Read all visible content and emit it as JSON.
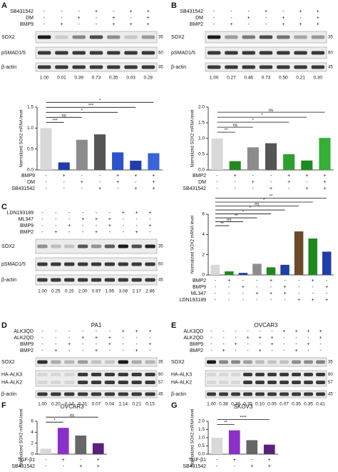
{
  "blots": [
    {
      "label": "A",
      "treatments": [
        {
          "name": "SB431542",
          "signs": [
            "-",
            "-",
            "-",
            "+",
            "-",
            "+",
            "+"
          ]
        },
        {
          "name": "DM",
          "signs": [
            "-",
            "-",
            "+",
            "-",
            "+",
            "-",
            "+"
          ]
        },
        {
          "name": "BMP9",
          "signs": [
            "-",
            "+",
            "-",
            "-",
            "+",
            "+",
            "+"
          ]
        }
      ],
      "rows": [
        {
          "name": [
            "SOX2"
          ],
          "mw": [
            "35"
          ]
        },
        {
          "name": [
            "pSMAD1/5"
          ],
          "mw": [
            "60"
          ]
        },
        {
          "name": [
            "β-actin"
          ],
          "mw": [
            "45"
          ]
        }
      ],
      "quant": [
        "1.00",
        "0.01",
        "0.39",
        "0.73",
        "0.35",
        "0.03",
        "0.28"
      ]
    },
    {
      "label": "B",
      "treatments": [
        {
          "name": "SB431542",
          "signs": [
            "-",
            "-",
            "-",
            "+",
            "-",
            "+",
            "+"
          ]
        },
        {
          "name": "DM",
          "signs": [
            "-",
            "-",
            "+",
            "-",
            "+",
            "-",
            "+"
          ]
        },
        {
          "name": "BMP2",
          "signs": [
            "-",
            "+",
            "-",
            "-",
            "+",
            "+",
            "+"
          ]
        }
      ],
      "rows": [
        {
          "name": [
            "SOX2"
          ],
          "mw": [
            "35"
          ]
        },
        {
          "name": [
            "pSMAD1/5"
          ],
          "mw": [
            "60"
          ]
        },
        {
          "name": [
            "β-actin"
          ],
          "mw": [
            "45"
          ]
        }
      ],
      "quant": [
        "1.00",
        "0.27",
        "0.46",
        "0.73",
        "0.50",
        "0.21",
        "0.30"
      ]
    },
    {
      "label": "C",
      "treatments": [
        {
          "name": "LDN193189",
          "signs": [
            "-",
            "-",
            "-",
            "-",
            "-",
            "-",
            "+",
            "+",
            "+"
          ]
        },
        {
          "name": "ML347",
          "signs": [
            "-",
            "-",
            "-",
            "+",
            "+",
            "+",
            "-",
            "-",
            "-"
          ]
        },
        {
          "name": "BMP9",
          "signs": [
            "-",
            "-",
            "+",
            "-",
            "-",
            "+",
            "-",
            "-",
            "+"
          ]
        },
        {
          "name": "BMP2",
          "signs": [
            "-",
            "+",
            "-",
            "-",
            "+",
            "-",
            "-",
            "+",
            "-"
          ]
        }
      ],
      "rows": [
        {
          "name": [
            "SOX2"
          ],
          "mw": [
            "35"
          ]
        },
        {
          "name": [
            "pSMAD1/5"
          ],
          "mw": [
            "60"
          ]
        },
        {
          "name": [
            "β-actin"
          ],
          "mw": [
            "45"
          ]
        }
      ],
      "quant": [
        "1.00",
        "0.25",
        "0.15",
        "2.00",
        "0.97",
        "1.95",
        "3.08",
        "2.17",
        "2.86"
      ]
    },
    {
      "label": "D",
      "title": "PA1",
      "treatments": [
        {
          "name": "ALK3QD",
          "signs": [
            "-",
            "-",
            "-",
            "-",
            "-",
            "-",
            "+",
            "+",
            "+"
          ]
        },
        {
          "name": "ALK2QD",
          "signs": [
            "-",
            "-",
            "-",
            "+",
            "+",
            "+",
            "-",
            "-",
            "-"
          ]
        },
        {
          "name": "BMP9",
          "signs": [
            "-",
            "-",
            "+",
            "-",
            "-",
            "+",
            "-",
            "-",
            "+"
          ]
        },
        {
          "name": "BMP2",
          "signs": [
            "-",
            "+",
            "-",
            "-",
            "+",
            "-",
            "-",
            "+",
            "-"
          ]
        }
      ],
      "rows": [
        {
          "name": [
            "SOX2"
          ],
          "mw": [
            "35"
          ]
        },
        {
          "name": [
            "HA-ALK3",
            "HA-ALK2"
          ],
          "mw": [
            "60",
            "57"
          ]
        },
        {
          "name": [
            "β-actin"
          ],
          "mw": [
            "45"
          ]
        }
      ],
      "quant": [
        "1.00",
        "0.20",
        "0.14",
        "0.31",
        "0.07",
        "0.04",
        "1.14",
        "0.21",
        "0.15"
      ]
    },
    {
      "label": "E",
      "title": "OVCAR3",
      "treatments": [
        {
          "name": "ALK3QD",
          "signs": [
            "-",
            "-",
            "-",
            "-",
            "-",
            "-",
            "+",
            "+",
            "+",
            "+"
          ]
        },
        {
          "name": "ALK2QD",
          "signs": [
            "-",
            "-",
            "-",
            "+",
            "+",
            "+",
            "-",
            "-",
            "-",
            "+"
          ]
        },
        {
          "name": "BMP9",
          "signs": [
            "-",
            "-",
            "+",
            "-",
            "-",
            "+",
            "-",
            "-",
            "+",
            "-"
          ]
        },
        {
          "name": "BMP2",
          "signs": [
            "-",
            "+",
            "-",
            "-",
            "+",
            "-",
            "-",
            "+",
            "-",
            "-"
          ]
        }
      ],
      "rows": [
        {
          "name": [
            "SOX2"
          ],
          "mw": [
            "35"
          ]
        },
        {
          "name": [
            "HA-ALK3",
            "HA-ALK2"
          ],
          "mw": [
            "60",
            "57"
          ]
        },
        {
          "name": [
            "β-actin"
          ],
          "mw": [
            "45"
          ]
        }
      ],
      "quant": [
        "1.00",
        "0.38",
        "0.39",
        "0.25",
        "0.10",
        "0.05",
        "0.07",
        "0.35",
        "0.35",
        "0.41"
      ]
    }
  ],
  "chart_data": [
    {
      "type": "bar",
      "ylabel": "Normalized SOX2 mRNA level",
      "values": [
        1.0,
        0.18,
        0.72,
        0.85,
        0.42,
        0.22,
        0.4
      ],
      "colors": [
        "#d9d9d9",
        "#1f3ea8",
        "#8c8c8c",
        "#555555",
        "#2c54c8",
        "#1f3ea8",
        "#3a63d8"
      ],
      "ylim": [
        0,
        1.5
      ],
      "yticks": [
        {
          "value": 0,
          "label": "0.0"
        },
        0.5,
        {
          "value": 1,
          "label": "1.0"
        },
        1.5
      ],
      "treatments": [
        {
          "name": "BMP9",
          "signs": [
            "-",
            "+",
            "-",
            "-",
            "+",
            "+",
            "+"
          ]
        },
        {
          "name": "DM",
          "signs": [
            "-",
            "-",
            "+",
            "-",
            "+",
            "-",
            "+"
          ]
        },
        {
          "name": "SB431542",
          "signs": [
            "-",
            "-",
            "-",
            "+",
            "-",
            "+",
            "+"
          ]
        }
      ],
      "annotations": [
        "***",
        "ns",
        "*",
        "***",
        "*"
      ]
    },
    {
      "type": "bar",
      "ylabel": "Normalized SOX2 mRNA level",
      "values": [
        1.0,
        0.28,
        0.72,
        0.85,
        0.5,
        0.3,
        1.02
      ],
      "colors": [
        "#d9d9d9",
        "#1e8a1e",
        "#8c8c8c",
        "#555555",
        "#2ea02e",
        "#1e8a1e",
        "#35b035"
      ],
      "ylim": [
        0,
        2
      ],
      "yticks": [
        {
          "value": 0,
          "label": "0.0"
        },
        0.5,
        {
          "value": 1,
          "label": "1.0"
        },
        1.5,
        {
          "value": 2,
          "label": "2.0"
        }
      ],
      "treatments": [
        {
          "name": "BMP2",
          "signs": [
            "-",
            "+",
            "-",
            "-",
            "+",
            "+",
            "+"
          ]
        },
        {
          "name": "DM",
          "signs": [
            "-",
            "-",
            "+",
            "-",
            "+",
            "-",
            "+"
          ]
        },
        {
          "name": "SB431542",
          "signs": [
            "-",
            "-",
            "-",
            "+",
            "-",
            "+",
            "+"
          ]
        }
      ],
      "annotations": [
        "**",
        "ns",
        "*",
        "*",
        "ns"
      ]
    },
    {
      "type": "bar",
      "ylabel": "Normalized SOX2 mRNA level",
      "values": [
        1.0,
        0.35,
        0.2,
        1.1,
        0.75,
        1.0,
        4.3,
        3.6,
        2.3
      ],
      "colors": [
        "#d9d9d9",
        "#1e8a1e",
        "#1f3ea8",
        "#8c8c8c",
        "#1e8a1e",
        "#1f3ea8",
        "#6b4a2a",
        "#1e8a1e",
        "#1f3ea8"
      ],
      "ylim": [
        0,
        6
      ],
      "yticks": [
        0,
        2,
        4,
        6
      ],
      "treatments": [
        {
          "name": "BMP2",
          "signs": [
            "-",
            "+",
            "-",
            "-",
            "+",
            "-",
            "-",
            "+",
            "-"
          ]
        },
        {
          "name": "BMP9",
          "signs": [
            "-",
            "-",
            "+",
            "-",
            "-",
            "+",
            "-",
            "-",
            "+"
          ]
        },
        {
          "name": "ML347",
          "signs": [
            "-",
            "-",
            "-",
            "+",
            "+",
            "+",
            "-",
            "-",
            "-"
          ]
        },
        {
          "name": "LDN193189",
          "signs": [
            "-",
            "-",
            "-",
            "-",
            "-",
            "-",
            "+",
            "+",
            "+"
          ]
        }
      ],
      "annotations": [
        "**",
        "ns",
        "**",
        "*",
        "*",
        "ns",
        "*",
        "**"
      ]
    },
    {
      "type": "bar",
      "label": "F",
      "title": "OVCAR3",
      "ylabel": "Normalized SOX2 mRNA level",
      "values": [
        1.0,
        4.8,
        3.4,
        2.0
      ],
      "colors": [
        "#d9d9d9",
        "#8b2fc9",
        "#666666",
        "#5a2080"
      ],
      "ylim": [
        0,
        6
      ],
      "yticks": [
        0,
        2,
        4,
        6
      ],
      "treatments": [
        {
          "name": "TGF-β1",
          "signs": [
            "-",
            "+",
            "-",
            "+"
          ]
        },
        {
          "name": "SB431542",
          "signs": [
            "-",
            "-",
            "+",
            "+"
          ]
        }
      ],
      "annotations": [
        "*",
        "ns"
      ]
    },
    {
      "type": "bar",
      "label": "G",
      "title": "SKOV3",
      "ylabel": "Normalized SOX2 mRNA level",
      "values": [
        1.0,
        1.45,
        0.85,
        0.58
      ],
      "colors": [
        "#d9d9d9",
        "#8b2fc9",
        "#666666",
        "#5a2080"
      ],
      "ylim": [
        0,
        2
      ],
      "yticks": [
        {
          "value": 0,
          "label": "0.0"
        },
        0.5,
        {
          "value": 1,
          "label": "1.0"
        },
        1.5,
        {
          "value": 2,
          "label": "2.0"
        }
      ],
      "treatments": [
        {
          "name": "TGF-β1",
          "signs": [
            "-",
            "+",
            "-",
            "+"
          ]
        },
        {
          "name": "SB431542",
          "signs": [
            "-",
            "-",
            "+",
            "+"
          ]
        }
      ],
      "annotations": [
        "**",
        "****"
      ]
    }
  ]
}
